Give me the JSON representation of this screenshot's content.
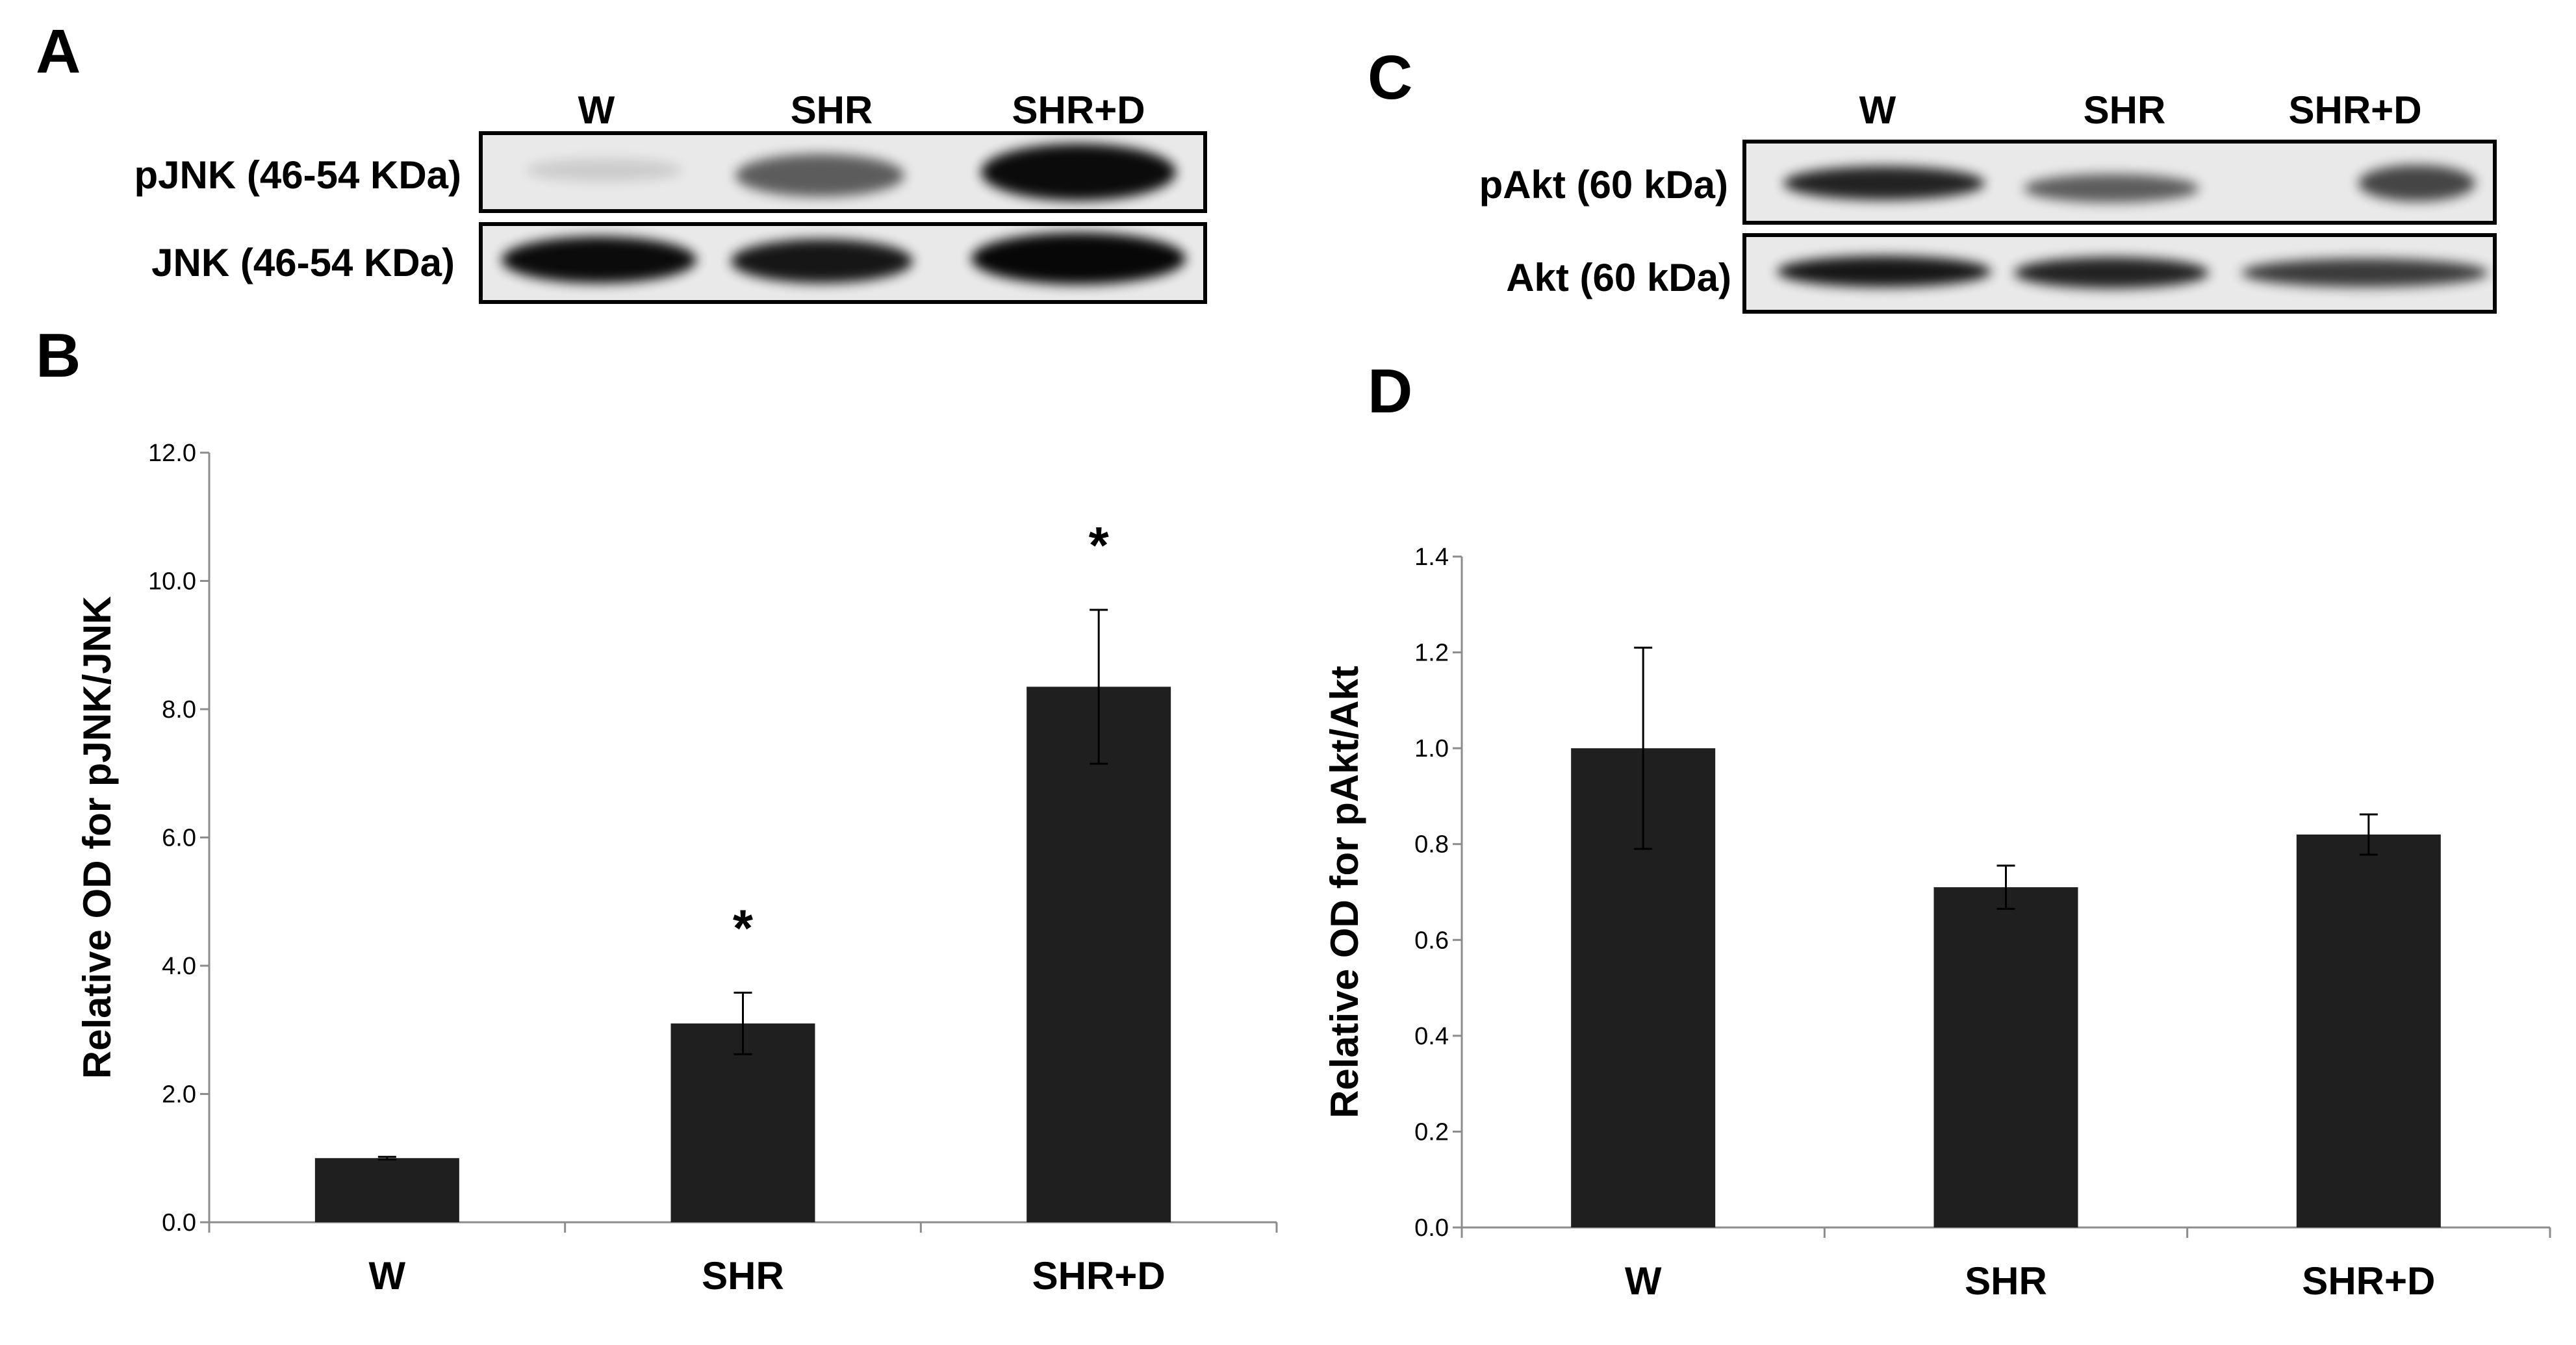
{
  "panels": {
    "A": {
      "letter": "A",
      "lanes": [
        "W",
        "SHR",
        "SHR+D"
      ],
      "blots": [
        {
          "label": "pJNK (46-54 KDa)",
          "bands": [
            0.12,
            0.6,
            0.95
          ]
        },
        {
          "label": "JNK (46-54 KDa)",
          "bands": [
            0.95,
            0.9,
            0.97
          ]
        }
      ]
    },
    "C": {
      "letter": "C",
      "lanes": [
        "W",
        "SHR",
        "SHR+D"
      ],
      "blots": [
        {
          "label": "pAkt (60 kDa)",
          "bands": [
            0.85,
            0.6,
            0.7
          ]
        },
        {
          "label": "Akt (60 kDa)",
          "bands": [
            0.9,
            0.85,
            0.75
          ]
        }
      ]
    },
    "B": {
      "letter": "B"
    },
    "D": {
      "letter": "D"
    }
  },
  "chart_data": [
    {
      "type": "bar",
      "panel": "B",
      "categories": [
        "W",
        "SHR",
        "SHR+D"
      ],
      "values": [
        1.0,
        3.1,
        8.35
      ],
      "errors": [
        0.02,
        0.48,
        1.2
      ],
      "annotations": [
        "",
        "*",
        "*"
      ],
      "ylabel": "Relative OD for pJNK/JNK",
      "xlabel": "",
      "ylim": [
        0,
        12.0
      ],
      "yticks": [
        "0.0",
        "2.0",
        "4.0",
        "6.0",
        "8.0",
        "10.0",
        "12.0"
      ],
      "bar_color": "#1f1f1f",
      "grid": false
    },
    {
      "type": "bar",
      "panel": "D",
      "categories": [
        "W",
        "SHR",
        "SHR+D"
      ],
      "values": [
        1.0,
        0.71,
        0.82
      ],
      "errors": [
        0.21,
        0.045,
        0.042
      ],
      "annotations": [
        "",
        "",
        ""
      ],
      "ylabel": "Relative OD for pAkt/Akt",
      "xlabel": "",
      "ylim": [
        0,
        1.4
      ],
      "yticks": [
        "0.0",
        "0.2",
        "0.4",
        "0.6",
        "0.8",
        "1.0",
        "1.2",
        "1.4"
      ],
      "bar_color": "#1f1f1f",
      "grid": false
    }
  ]
}
